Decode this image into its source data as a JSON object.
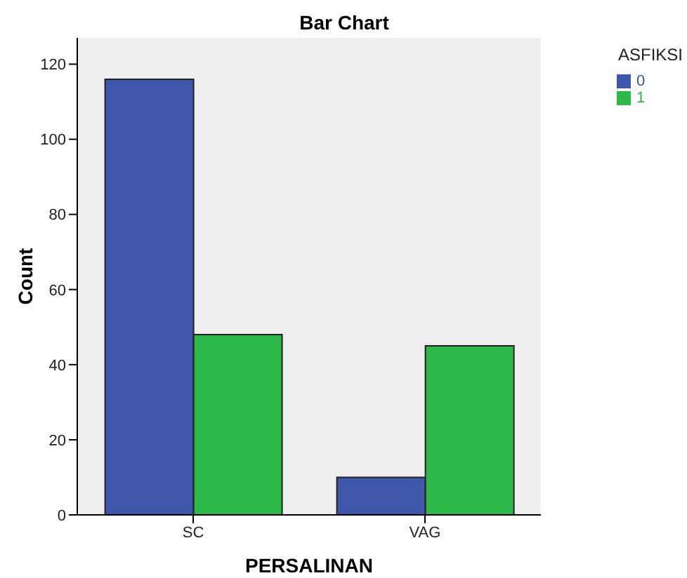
{
  "chart_data": {
    "type": "bar",
    "title": "Bar Chart",
    "xlabel": "PERSALINAN",
    "ylabel": "Count",
    "legend_title": "ASFIKSI",
    "categories": [
      "SC",
      "VAG"
    ],
    "series": [
      {
        "name": "0",
        "color": "#3f57ab",
        "values": [
          116,
          10
        ]
      },
      {
        "name": "1",
        "color": "#2fb84a",
        "values": [
          48,
          45
        ]
      }
    ],
    "ylim": [
      0,
      127
    ],
    "yticks": [
      0,
      20,
      40,
      60,
      80,
      100,
      120
    ],
    "grid": false,
    "legend": "top right"
  }
}
